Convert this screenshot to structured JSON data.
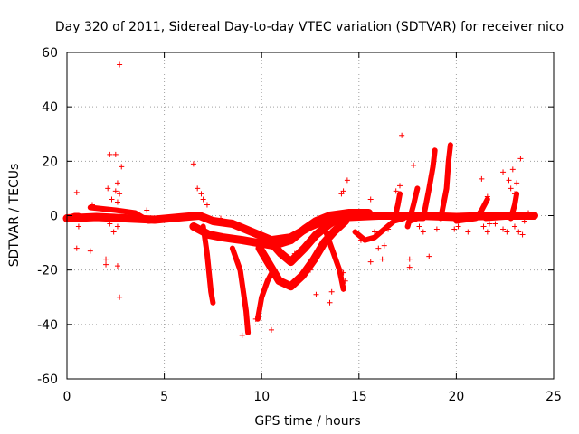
{
  "chart_data": {
    "type": "scatter",
    "title": "Day 320 of 2011, Sidereal Day-to-day VTEC variation (SDTVAR) for receiver nico",
    "xlabel": "GPS time / hours",
    "ylabel": "SDTVAR / TECUs",
    "xlim": [
      0,
      25
    ],
    "ylim": [
      -60,
      60
    ],
    "xticks": [
      0,
      5,
      10,
      15,
      20,
      25
    ],
    "yticks": [
      -60,
      -40,
      -20,
      0,
      20,
      40,
      60
    ],
    "grid": true,
    "marker": "+",
    "color": "#ff0000",
    "dense_bands": [
      [
        [
          0.0,
          -1
        ],
        [
          1.5,
          -0.5
        ],
        [
          3,
          -1
        ],
        [
          4.5,
          -1.5
        ],
        [
          6,
          -0.5
        ],
        [
          6.8,
          0
        ],
        [
          7.5,
          -2
        ],
        [
          8.5,
          -3
        ],
        [
          9.5,
          -6
        ],
        [
          10.5,
          -9
        ],
        [
          11.5,
          -8
        ],
        [
          12.5,
          -4
        ],
        [
          13.5,
          -1
        ],
        [
          14.5,
          -0.5
        ],
        [
          16,
          0
        ],
        [
          18,
          0
        ],
        [
          20,
          -0.5
        ],
        [
          22,
          0
        ],
        [
          24,
          0
        ]
      ],
      [
        [
          6.5,
          -4
        ],
        [
          7.3,
          -7
        ],
        [
          8,
          -8
        ],
        [
          9,
          -9
        ],
        [
          9.8,
          -10
        ],
        [
          10.6,
          -11
        ],
        [
          11.5,
          -9
        ],
        [
          12.2,
          -5
        ],
        [
          12.8,
          -2
        ],
        [
          13.5,
          0
        ],
        [
          14.5,
          1
        ],
        [
          15.5,
          1
        ]
      ],
      [
        [
          8.5,
          -12
        ],
        [
          8.9,
          -20
        ],
        [
          9.2,
          -35
        ],
        [
          9.3,
          -43
        ]
      ],
      [
        [
          9.9,
          -12
        ],
        [
          10.4,
          -18
        ],
        [
          10.9,
          -24
        ],
        [
          11.5,
          -26
        ],
        [
          12.1,
          -22
        ],
        [
          12.7,
          -16
        ],
        [
          13.2,
          -10
        ],
        [
          13.7,
          -6
        ],
        [
          14.3,
          -2
        ]
      ],
      [
        [
          9.8,
          -38
        ],
        [
          10,
          -30
        ],
        [
          10.3,
          -24
        ],
        [
          10.6,
          -20
        ]
      ],
      [
        [
          7.0,
          -4
        ],
        [
          7.2,
          -14
        ],
        [
          7.4,
          -28
        ],
        [
          7.5,
          -32
        ]
      ],
      [
        [
          10.5,
          -10
        ],
        [
          11,
          -14
        ],
        [
          11.5,
          -17
        ],
        [
          12.2,
          -12
        ],
        [
          12.8,
          -7
        ],
        [
          13.5,
          -3
        ],
        [
          14.2,
          0
        ]
      ],
      [
        [
          13.2,
          -4
        ],
        [
          13.6,
          -12
        ],
        [
          14,
          -20
        ],
        [
          14.2,
          -27
        ]
      ],
      [
        [
          14.8,
          -6
        ],
        [
          15.3,
          -9
        ],
        [
          15.8,
          -8
        ],
        [
          16.3,
          -5
        ],
        [
          16.8,
          -2
        ],
        [
          17.3,
          -1
        ]
      ],
      [
        [
          17.6,
          -2
        ],
        [
          18.0,
          -1
        ],
        [
          18.3,
          -1
        ],
        [
          18.6,
          10
        ],
        [
          18.8,
          18
        ],
        [
          18.9,
          24
        ]
      ],
      [
        [
          19.2,
          -1
        ],
        [
          19.5,
          10
        ],
        [
          19.6,
          20
        ],
        [
          19.7,
          26
        ]
      ],
      [
        [
          17.5,
          -4
        ],
        [
          17.8,
          4
        ],
        [
          18.0,
          10
        ]
      ],
      [
        [
          16.8,
          -2
        ],
        [
          17.0,
          4
        ],
        [
          17.1,
          8
        ]
      ],
      [
        [
          20.0,
          -2
        ],
        [
          21.0,
          -1
        ],
        [
          21.3,
          2
        ],
        [
          21.6,
          6
        ]
      ],
      [
        [
          21.5,
          -1
        ],
        [
          22.5,
          -0.5
        ],
        [
          23.5,
          0
        ],
        [
          24,
          0
        ]
      ],
      [
        [
          22.8,
          -1
        ],
        [
          23.0,
          4
        ],
        [
          23.1,
          8
        ]
      ],
      [
        [
          1.2,
          3
        ],
        [
          2.5,
          2
        ],
        [
          3.5,
          1
        ],
        [
          4.2,
          -2
        ],
        [
          5,
          -1
        ]
      ],
      [
        [
          0,
          -1
        ],
        [
          0.4,
          0
        ],
        [
          0.6,
          0
        ]
      ]
    ],
    "series": [
      {
        "name": "SDTVAR",
        "points": [
          [
            2.7,
            55.5
          ],
          [
            17.2,
            29.5
          ],
          [
            6.5,
            19
          ],
          [
            2.8,
            18
          ],
          [
            17.8,
            18.5
          ],
          [
            2.2,
            22.5
          ],
          [
            2.5,
            22.5
          ],
          [
            21.3,
            13.5
          ],
          [
            22.4,
            16
          ],
          [
            23.3,
            21
          ],
          [
            22.9,
            17
          ],
          [
            0.5,
            8.5
          ],
          [
            2.1,
            10
          ],
          [
            2.6,
            12
          ],
          [
            2.5,
            9
          ],
          [
            2.7,
            8
          ],
          [
            6.9,
            8
          ],
          [
            7.0,
            6
          ],
          [
            14.4,
            13
          ],
          [
            14.2,
            9
          ],
          [
            14.1,
            8
          ],
          [
            15.6,
            6
          ],
          [
            16.9,
            9
          ],
          [
            17.1,
            11
          ],
          [
            21.6,
            7
          ],
          [
            22.8,
            10
          ],
          [
            22.7,
            13
          ],
          [
            23.0,
            8
          ],
          [
            23.1,
            12
          ],
          [
            2.3,
            6
          ],
          [
            2.6,
            5
          ],
          [
            6.7,
            10
          ],
          [
            7.2,
            4
          ],
          [
            1.3,
            4
          ],
          [
            4.1,
            2
          ],
          [
            2.2,
            -3
          ],
          [
            2.6,
            -4
          ],
          [
            2.4,
            -6
          ],
          [
            0.5,
            -12
          ],
          [
            1.2,
            -13
          ],
          [
            0.6,
            -4
          ],
          [
            7.9,
            -1
          ],
          [
            8.1,
            -3
          ],
          [
            7.5,
            -2
          ],
          [
            2.0,
            -16
          ],
          [
            2.0,
            -18
          ],
          [
            2.6,
            -18.5
          ],
          [
            2.7,
            -30
          ],
          [
            17.6,
            -16
          ],
          [
            17.6,
            -19
          ],
          [
            16.2,
            -16
          ],
          [
            15.6,
            -17
          ],
          [
            14.2,
            -21
          ],
          [
            14.3,
            -24
          ],
          [
            14.2,
            -27
          ],
          [
            13.6,
            -28
          ],
          [
            13.5,
            -32
          ],
          [
            16.0,
            -12
          ],
          [
            16.3,
            -11
          ],
          [
            18.6,
            -15
          ],
          [
            20.1,
            -4
          ],
          [
            20.6,
            -6
          ],
          [
            21.4,
            -4
          ],
          [
            21.6,
            -6
          ],
          [
            22.4,
            -5
          ],
          [
            22.6,
            -6
          ],
          [
            23.2,
            -6
          ],
          [
            23.4,
            -7
          ],
          [
            23.0,
            -4
          ],
          [
            23.5,
            -2
          ],
          [
            19.9,
            -5
          ],
          [
            21.7,
            -3
          ],
          [
            22.0,
            -3
          ],
          [
            24.0,
            0
          ],
          [
            23.7,
            1
          ],
          [
            10.5,
            -42
          ],
          [
            9.0,
            -44
          ],
          [
            11.7,
            -14
          ],
          [
            12.5,
            -20
          ],
          [
            11.2,
            -25
          ],
          [
            12.8,
            -29
          ],
          [
            9.7,
            -38
          ],
          [
            13.2,
            -11
          ],
          [
            15.1,
            -9
          ],
          [
            15.8,
            -6
          ],
          [
            16.5,
            -5
          ],
          [
            18.1,
            -4
          ],
          [
            18.3,
            -6
          ],
          [
            19.0,
            -5
          ]
        ]
      }
    ]
  }
}
